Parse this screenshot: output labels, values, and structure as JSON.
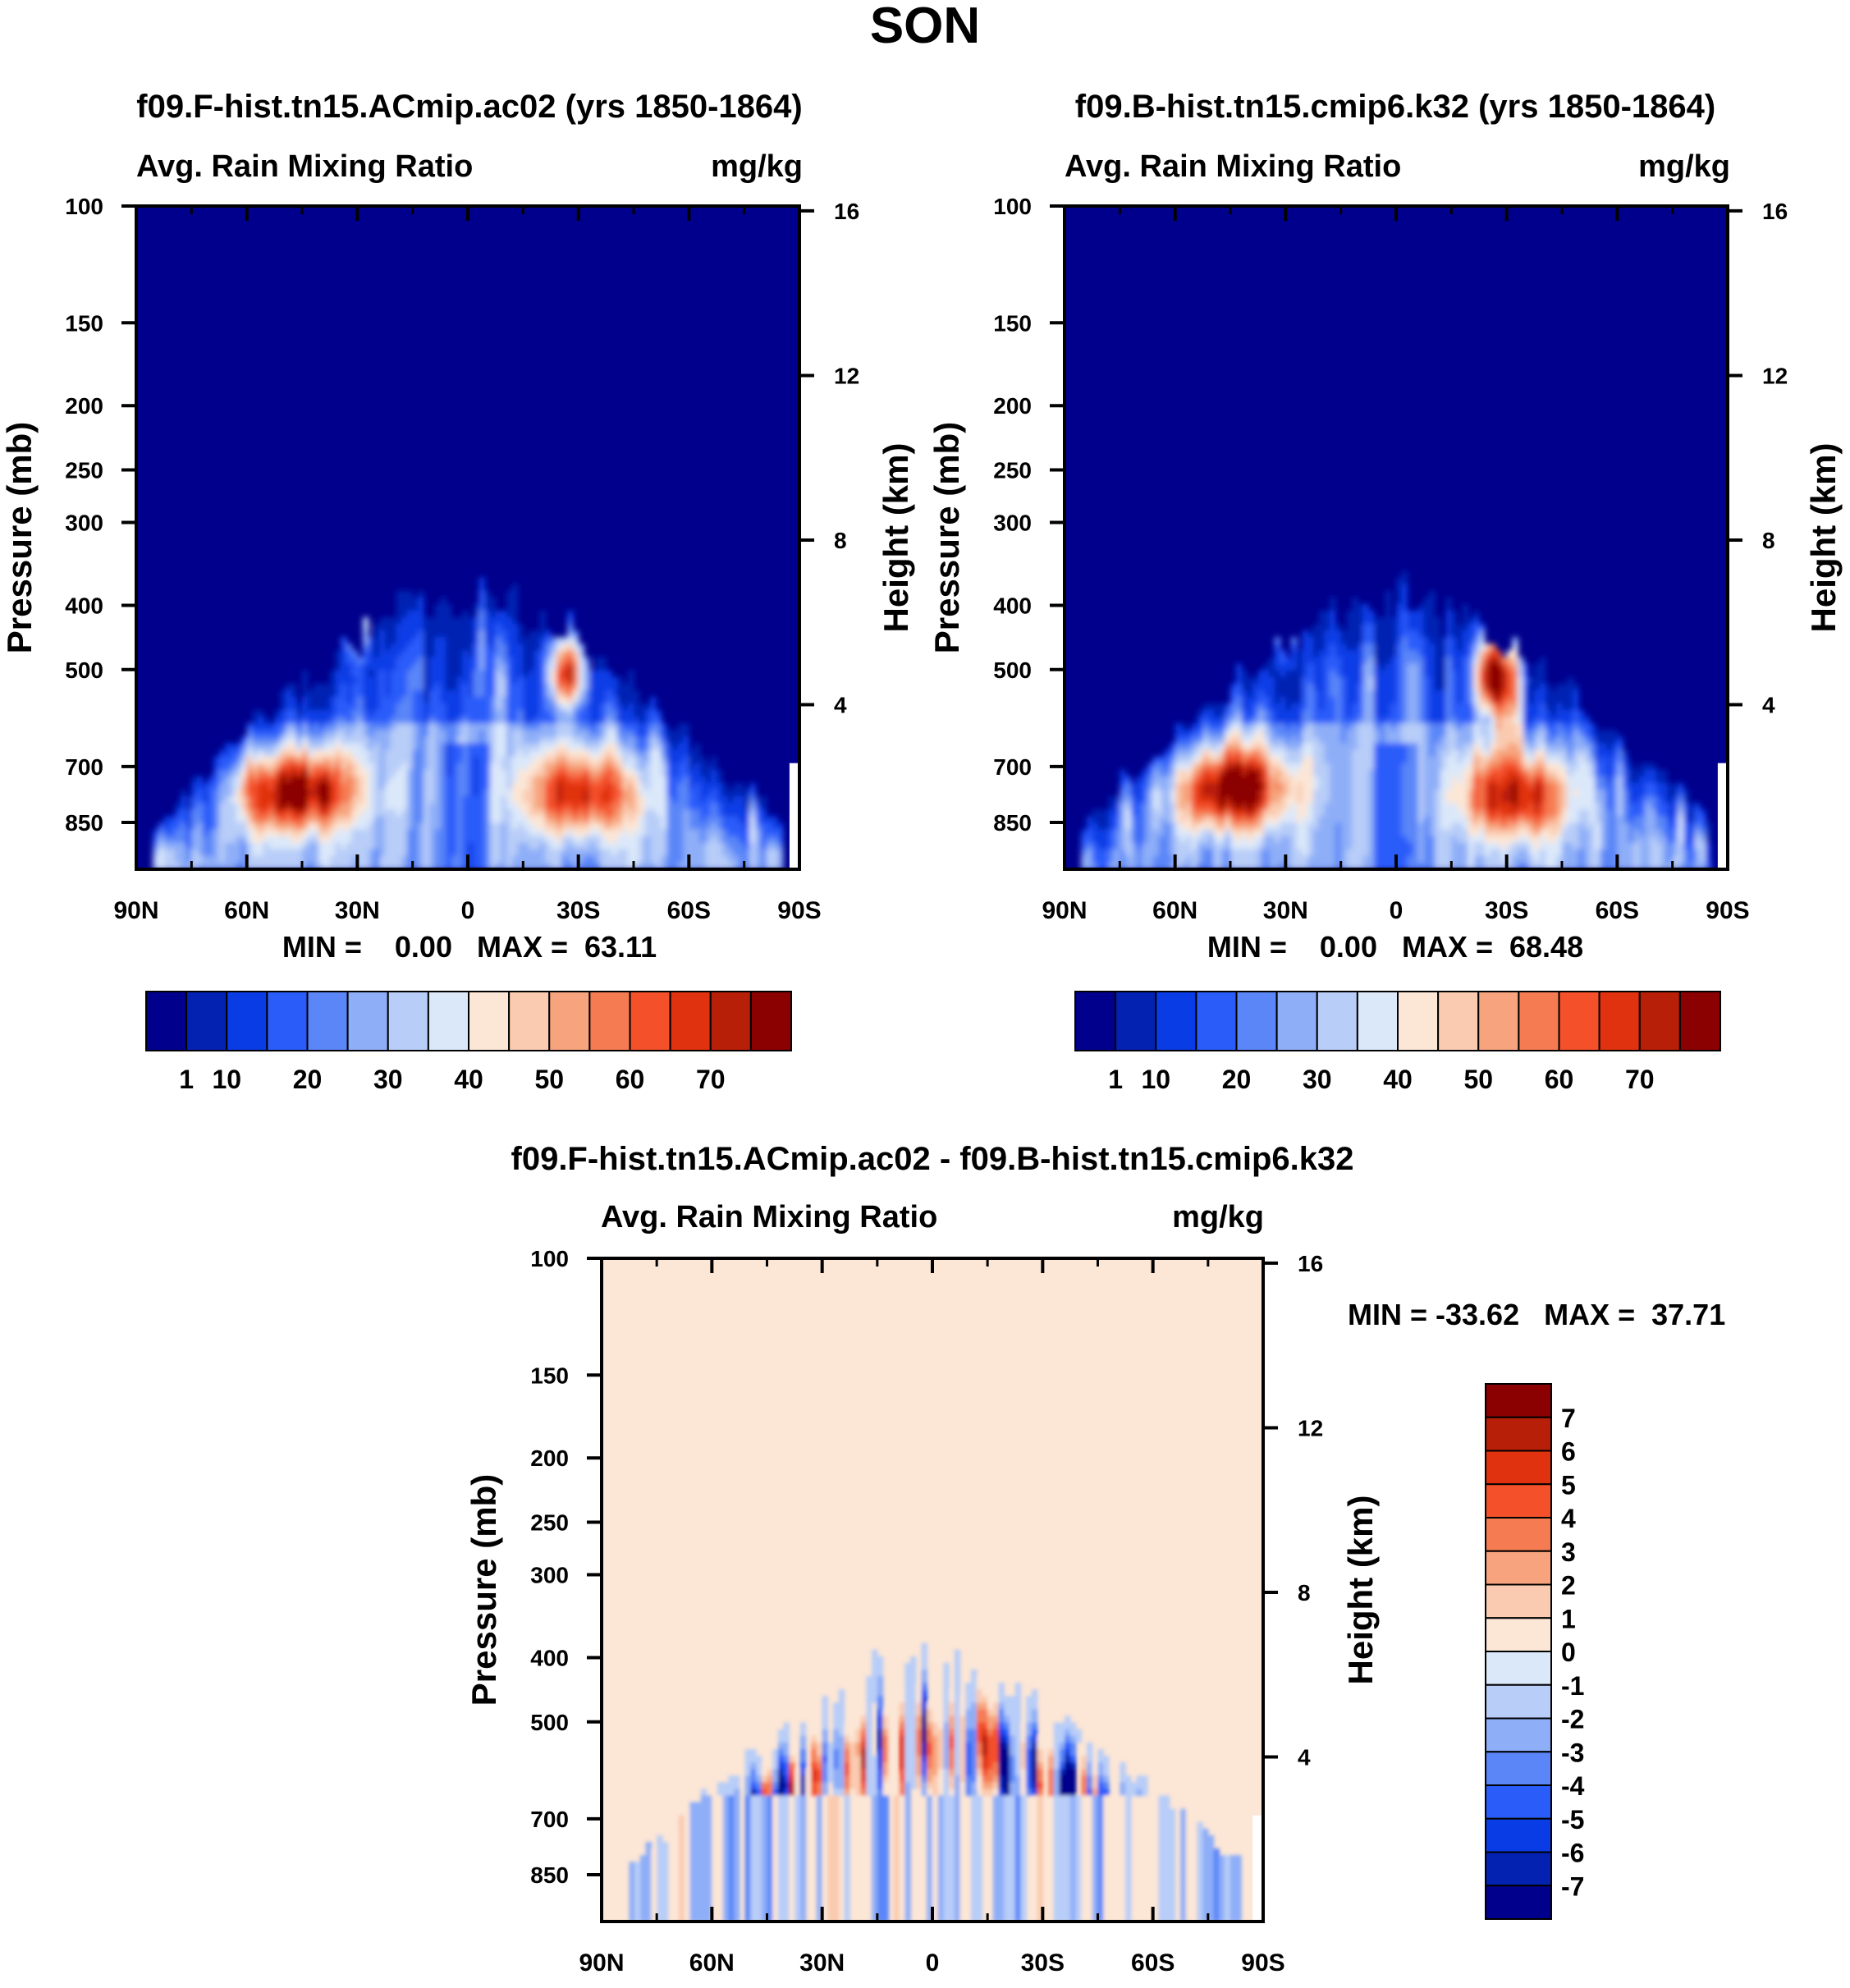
{
  "page_title": "SON",
  "chart_data": [
    {
      "type": "heatmap",
      "panel": "left",
      "title": "f09.F-hist.tn15.ACmip.ac02 (yrs 1850-1864)",
      "subtitle_left": "Avg. Rain Mixing Ratio",
      "subtitle_right": "mg/kg",
      "ylabel": "Pressure (mb)",
      "y2label": "Height (km)",
      "x_ticks": [
        "90N",
        "60N",
        "30N",
        "0",
        "30S",
        "60S",
        "90S"
      ],
      "x_ticks_values": [
        90,
        60,
        30,
        0,
        -30,
        -60,
        -90
      ],
      "y_ticks": [
        "100",
        "150",
        "200",
        "250",
        "300",
        "400",
        "500",
        "700",
        "850"
      ],
      "y_ticks_values": [
        100,
        150,
        200,
        250,
        300,
        400,
        500,
        700,
        850
      ],
      "ylim": [
        100,
        1000
      ],
      "y2_ticks": [
        "16",
        "12",
        "8",
        "4"
      ],
      "y2_ticks_values": [
        16,
        12,
        8,
        4
      ],
      "min_max_label": "MIN =    0.00   MAX =  63.11",
      "min": 0.0,
      "max": 63.11,
      "colorbar_labels": [
        "1",
        "10",
        "20",
        "30",
        "40",
        "50",
        "60",
        "70"
      ],
      "colorbar_levels": [
        1,
        5,
        10,
        15,
        20,
        25,
        30,
        35,
        40,
        45,
        50,
        55,
        60,
        65,
        70
      ],
      "colorbar_colors": [
        "#00008c",
        "#0422b2",
        "#0a3ce6",
        "#2a5cfa",
        "#5a86f8",
        "#8eaef8",
        "#b8cdf8",
        "#dbe8fa",
        "#fce6d6",
        "#facbb0",
        "#f7a47e",
        "#f57c52",
        "#f4502a",
        "#e0320e",
        "#b81f08",
        "#8b0000"
      ],
      "features": [
        {
          "lat": 47,
          "p": 760,
          "peak": 55,
          "wlat": 11,
          "wp": 75
        },
        {
          "lat": -30,
          "p": 770,
          "peak": 47,
          "wlat": 10,
          "wp": 80
        },
        {
          "lat": -27,
          "p": 505,
          "peak": 63.11,
          "wlat": 3.5,
          "wp": 45
        },
        {
          "lat": 30,
          "p": 420,
          "peak": 36,
          "wlat": 2.5,
          "wp": 40
        }
      ]
    },
    {
      "type": "heatmap",
      "panel": "right",
      "title": "f09.B-hist.tn15.cmip6.k32 (yrs 1850-1864)",
      "subtitle_left": "Avg. Rain Mixing Ratio",
      "subtitle_right": "mg/kg",
      "ylabel": "Pressure (mb)",
      "y2label": "Height (km)",
      "x_ticks": [
        "90N",
        "60N",
        "30N",
        "0",
        "30S",
        "60S",
        "90S"
      ],
      "x_ticks_values": [
        90,
        60,
        30,
        0,
        -30,
        -60,
        -90
      ],
      "y_ticks": [
        "100",
        "150",
        "200",
        "250",
        "300",
        "400",
        "500",
        "700",
        "850"
      ],
      "y_ticks_values": [
        100,
        150,
        200,
        250,
        300,
        400,
        500,
        700,
        850
      ],
      "ylim": [
        100,
        1000
      ],
      "y2_ticks": [
        "16",
        "12",
        "8",
        "4"
      ],
      "y2_ticks_values": [
        16,
        12,
        8,
        4
      ],
      "min_max_label": "MIN =    0.00   MAX =  68.48",
      "min": 0.0,
      "max": 68.48,
      "colorbar_labels": [
        "1",
        "10",
        "20",
        "30",
        "40",
        "50",
        "60",
        "70"
      ],
      "colorbar_levels": [
        1,
        5,
        10,
        15,
        20,
        25,
        30,
        35,
        40,
        45,
        50,
        55,
        60,
        65,
        70
      ],
      "colorbar_colors": [
        "#00008c",
        "#0422b2",
        "#0a3ce6",
        "#2a5cfa",
        "#5a86f8",
        "#8eaef8",
        "#b8cdf8",
        "#dbe8fa",
        "#fce6d6",
        "#facbb0",
        "#f7a47e",
        "#f57c52",
        "#f4502a",
        "#e0320e",
        "#b81f08",
        "#8b0000"
      ],
      "features": [
        {
          "lat": 45,
          "p": 755,
          "peak": 58,
          "wlat": 11,
          "wp": 75
        },
        {
          "lat": -32,
          "p": 775,
          "peak": 45,
          "wlat": 10,
          "wp": 80
        },
        {
          "lat": -27,
          "p": 510,
          "peak": 68.48,
          "wlat": 4,
          "wp": 50
        },
        {
          "lat": 30,
          "p": 420,
          "peak": 34,
          "wlat": 2.5,
          "wp": 40
        }
      ]
    },
    {
      "type": "heatmap",
      "panel": "difference",
      "title": "f09.F-hist.tn15.ACmip.ac02 - f09.B-hist.tn15.cmip6.k32",
      "subtitle_left": "Avg. Rain Mixing Ratio",
      "subtitle_right": "mg/kg",
      "ylabel": "Pressure (mb)",
      "y2label": "Height (km)",
      "x_ticks": [
        "90N",
        "60N",
        "30N",
        "0",
        "30S",
        "60S",
        "90S"
      ],
      "x_ticks_values": [
        90,
        60,
        30,
        0,
        -30,
        -60,
        -90
      ],
      "y_ticks": [
        "100",
        "150",
        "200",
        "250",
        "300",
        "400",
        "500",
        "700",
        "850"
      ],
      "y_ticks_values": [
        100,
        150,
        200,
        250,
        300,
        400,
        500,
        700,
        850
      ],
      "ylim": [
        100,
        1000
      ],
      "y2_ticks": [
        "16",
        "12",
        "8",
        "4"
      ],
      "y2_ticks_values": [
        16,
        12,
        8,
        4
      ],
      "min_max_label": "MIN = -33.62   MAX =  37.71",
      "min": -33.62,
      "max": 37.71,
      "colorbar_labels": [
        "7",
        "6",
        "5",
        "4",
        "3",
        "2",
        "1",
        "0",
        "-1",
        "-2",
        "-3",
        "-4",
        "-5",
        "-6",
        "-7"
      ],
      "colorbar_levels": [
        7,
        6,
        5,
        4,
        3,
        2,
        1,
        0,
        -1,
        -2,
        -3,
        -4,
        -5,
        -6,
        -7
      ],
      "colorbar_colors": [
        "#8b0000",
        "#b81f08",
        "#e0320e",
        "#f4502a",
        "#f57c52",
        "#f7a47e",
        "#facbb0",
        "#fce6d6",
        "#dbe8fa",
        "#b8cdf8",
        "#8eaef8",
        "#5a86f8",
        "#2a5cfa",
        "#0a3ce6",
        "#0422b2",
        "#00008c"
      ]
    }
  ]
}
